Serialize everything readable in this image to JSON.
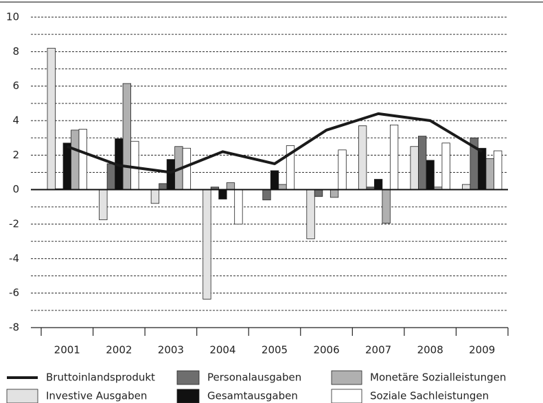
{
  "chart_data": {
    "type": "bar",
    "categories": [
      "2001",
      "2002",
      "2003",
      "2004",
      "2005",
      "2006",
      "2007",
      "2008",
      "2009"
    ],
    "series": [
      {
        "name": "Bruttoinlandsprodukt",
        "type": "line",
        "color": "#1a1a1a",
        "values": [
          2.5,
          1.4,
          1.0,
          2.2,
          1.5,
          3.45,
          4.4,
          4.0,
          2.2
        ]
      },
      {
        "name": "Investive Ausgaben",
        "color": "#e2e2e2",
        "values": [
          8.2,
          -1.75,
          -0.8,
          -6.35,
          0.0,
          -2.85,
          3.7,
          2.5,
          0.3
        ]
      },
      {
        "name": "Personalausgaben",
        "color": "#6e6e6e",
        "values": [
          0.05,
          1.5,
          0.35,
          0.15,
          -0.6,
          -0.4,
          0.15,
          3.1,
          3.0
        ]
      },
      {
        "name": "Gesamtausgaben",
        "color": "#111111",
        "values": [
          2.7,
          2.95,
          1.75,
          -0.55,
          1.1,
          0.0,
          0.6,
          1.7,
          2.4
        ]
      },
      {
        "name": "Monetäre Sozialleistungen",
        "color": "#b0b0b0",
        "values": [
          3.45,
          6.15,
          2.5,
          0.4,
          0.3,
          -0.45,
          -1.95,
          0.15,
          1.8
        ]
      },
      {
        "name": "Soziale Sachleistungen",
        "color": "#ffffff",
        "values": [
          3.5,
          2.8,
          2.4,
          -2.0,
          2.55,
          2.3,
          3.75,
          2.7,
          2.25
        ]
      }
    ],
    "ylim": [
      -8,
      10
    ],
    "yticks": [
      -8,
      -6,
      -4,
      -2,
      0,
      2,
      4,
      6,
      8,
      10
    ],
    "minor_yticks": [
      -7,
      -5,
      -3,
      -1,
      1,
      3,
      5,
      7,
      9
    ],
    "grid": true,
    "legend": "bottom"
  }
}
